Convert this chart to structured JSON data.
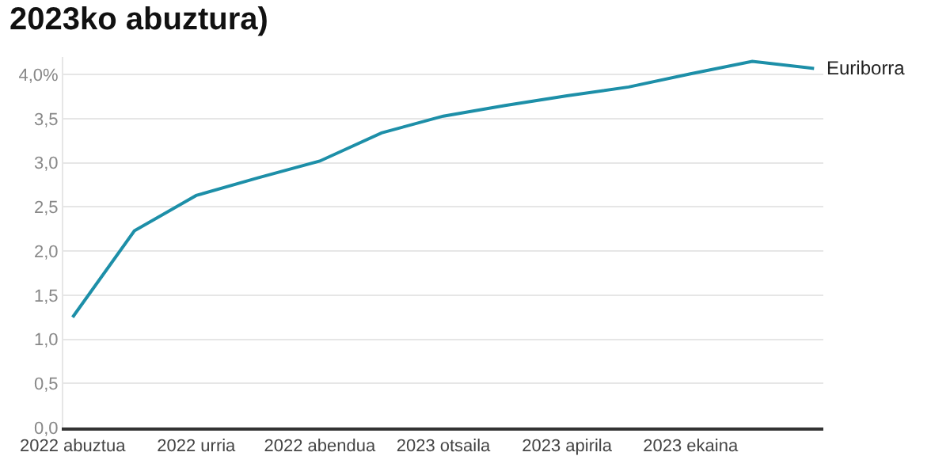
{
  "chart_data": {
    "type": "line",
    "title": "2023ko abuztura)",
    "categories": [
      "2022 abuztua",
      null,
      "2022 urria",
      null,
      "2022 abendua",
      null,
      "2023 otsaila",
      null,
      "2023 apirila",
      null,
      "2023 ekaina",
      null,
      null
    ],
    "series": [
      {
        "name": "Euriborra",
        "color": "#1d8fa8",
        "values": [
          1.25,
          2.23,
          2.63,
          2.83,
          3.02,
          3.34,
          3.53,
          3.65,
          3.76,
          3.86,
          4.01,
          4.15,
          4.07
        ]
      }
    ],
    "ylim": [
      0,
      4.2
    ],
    "yticks": [
      {
        "value": 0,
        "label": "0,0"
      },
      {
        "value": 0.5,
        "label": "0,5"
      },
      {
        "value": 1,
        "label": "1,0"
      },
      {
        "value": 1.5,
        "label": "1,5"
      },
      {
        "value": 2,
        "label": "2,0"
      },
      {
        "value": 2.5,
        "label": "2,5"
      },
      {
        "value": 3,
        "label": "3,0"
      },
      {
        "value": 3.5,
        "label": "3,5"
      },
      {
        "value": 4,
        "label": "4,0%"
      }
    ],
    "grid": "y",
    "legend": false,
    "marker": "none",
    "line_style": "solid"
  }
}
